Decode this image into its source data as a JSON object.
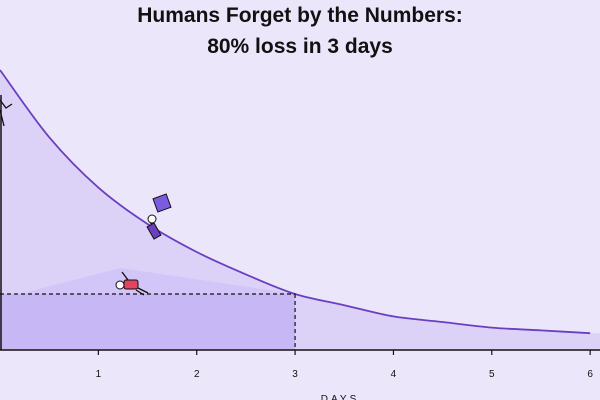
{
  "chart_data": {
    "type": "area",
    "title": [
      "Humans Forget by the Numbers:",
      "80% loss in 3 days"
    ],
    "x_label": "DAYS",
    "x": [
      0,
      0.5,
      1,
      1.5,
      2,
      2.5,
      3,
      3.5,
      4,
      4.5,
      5,
      5.5,
      6
    ],
    "values": [
      100,
      76,
      58,
      45,
      35,
      27,
      20,
      16,
      12,
      10,
      8,
      7,
      6
    ],
    "color": "#6a3fc0",
    "fill": "#dcd2f8",
    "highlight": {
      "x": 3,
      "y": 20,
      "color": "#c7b8f5"
    },
    "xlim": [
      0,
      6.1
    ],
    "ylim": [
      0,
      125
    ],
    "xticks": [
      1,
      2,
      3,
      4,
      5,
      6
    ]
  }
}
